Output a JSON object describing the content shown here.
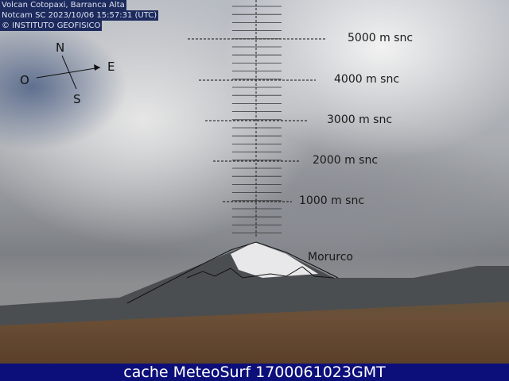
{
  "overlay": {
    "line1": "Volcan Cotopaxi, Barranca Alta",
    "line2": "Notcam SC 2023/10/06 15:57:31 (UTC)",
    "line3": "© INSTITUTO GEOFISICO"
  },
  "compass": {
    "north": "N",
    "east": "E",
    "south": "S",
    "west": "O"
  },
  "altitudes": [
    "5000 m snc",
    "4000 m snc",
    "3000 m snc",
    "2000 m snc",
    "1000 m snc"
  ],
  "peak_label": "Morurco",
  "footer": "cache MeteoSurf 1700061023GMT"
}
